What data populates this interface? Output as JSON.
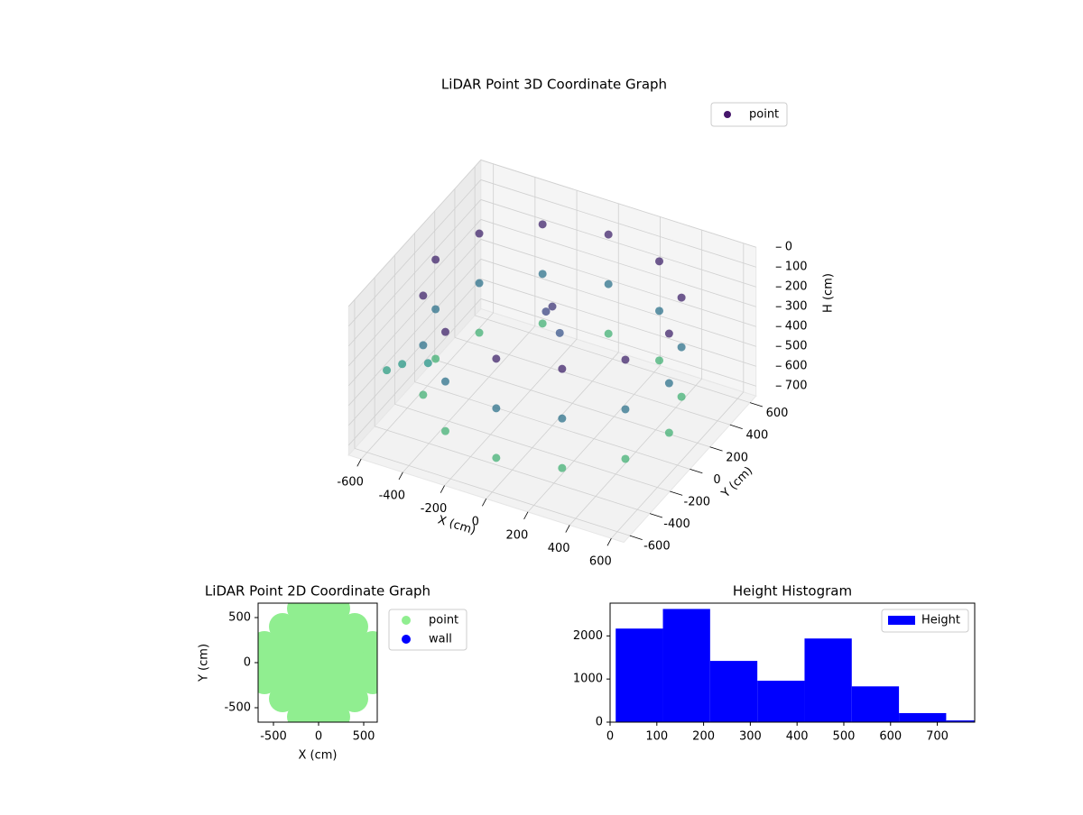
{
  "chart_data": [
    {
      "type": "scatter3d",
      "title": "LiDAR Point 3D Coordinate Graph",
      "xlabel": "X (cm)",
      "ylabel": "Y (cm)",
      "zlabel": "H (cm)",
      "xlim": [
        -660,
        660
      ],
      "ylim": [
        -660,
        660
      ],
      "zlim": [
        0,
        750
      ],
      "z_inverted": true,
      "xticks": [
        -600,
        -400,
        -200,
        0,
        200,
        400,
        600
      ],
      "yticks": [
        -600,
        -400,
        -200,
        0,
        200,
        400,
        600
      ],
      "zticks": [
        0,
        100,
        200,
        300,
        400,
        500,
        600,
        700
      ],
      "colormap": "viridis",
      "grid": true,
      "legend": "upper right",
      "series": [
        {
          "name": "point",
          "color": "#46166b",
          "x": [
            560,
            485,
            280,
            0,
            -280,
            -485,
            -560,
            -485,
            -280,
            0,
            280,
            485,
            560,
            485,
            280,
            0,
            -280,
            -485,
            -560,
            -485,
            -280,
            0,
            280,
            485,
            560,
            485,
            280,
            0,
            -280,
            -485,
            -560,
            -485,
            -280,
            0,
            280,
            485,
            0,
            50,
            -40,
            -650,
            -600,
            -500
          ],
          "y": [
            0,
            280,
            485,
            560,
            485,
            280,
            0,
            -280,
            -485,
            -560,
            -485,
            -280,
            0,
            280,
            485,
            560,
            485,
            280,
            0,
            -280,
            -485,
            -560,
            -485,
            -280,
            0,
            280,
            485,
            560,
            485,
            280,
            0,
            -280,
            -485,
            -560,
            -485,
            -280,
            0,
            -30,
            20,
            -300,
            -250,
            -200
          ],
          "z": [
            100,
            100,
            100,
            100,
            100,
            100,
            100,
            100,
            100,
            100,
            100,
            100,
            350,
            350,
            350,
            350,
            350,
            350,
            350,
            350,
            350,
            350,
            350,
            350,
            600,
            600,
            600,
            600,
            600,
            600,
            600,
            600,
            600,
            600,
            600,
            600,
            150,
            250,
            200,
            520,
            500,
            490
          ]
        }
      ]
    },
    {
      "type": "scatter",
      "title": "LiDAR Point 2D Coordinate Graph",
      "xlabel": "X (cm)",
      "ylabel": "Y (cm)",
      "xlim": [
        -670,
        650
      ],
      "ylim": [
        -660,
        660
      ],
      "xticks": [
        -500,
        0,
        500
      ],
      "yticks": [
        -500,
        0,
        500
      ],
      "legend": "outside right",
      "series": [
        {
          "name": "point",
          "color": "#90ee90",
          "x": [
            -200,
            0,
            200,
            -400,
            -200,
            0,
            200,
            400,
            -600,
            -400,
            -200,
            0,
            200,
            400,
            600,
            -600,
            -400,
            -200,
            0,
            200,
            400,
            600,
            -600,
            -400,
            -200,
            0,
            200,
            400,
            600,
            -400,
            -200,
            0,
            200,
            400,
            -200,
            0,
            200
          ],
          "y": [
            600,
            600,
            600,
            400,
            400,
            400,
            400,
            400,
            200,
            200,
            200,
            200,
            200,
            200,
            200,
            0,
            0,
            0,
            0,
            0,
            0,
            0,
            -200,
            -200,
            -200,
            -200,
            -200,
            -200,
            -200,
            -400,
            -400,
            -400,
            -400,
            -400,
            -600,
            -600,
            -600
          ]
        },
        {
          "name": "wall",
          "color": "#0000ff",
          "x": [],
          "y": []
        }
      ]
    },
    {
      "type": "histogram",
      "title": "Height Histogram",
      "bins": [
        12,
        113,
        214,
        315,
        416,
        517,
        618,
        719,
        820
      ],
      "xlim": [
        0,
        780
      ],
      "ylim": [
        0,
        2760
      ],
      "xticks": [
        0,
        100,
        200,
        300,
        400,
        500,
        600,
        700
      ],
      "yticks": [
        0,
        1000,
        2000
      ],
      "legend": "upper right",
      "series": [
        {
          "name": "Height",
          "color": "#0000ff",
          "values": [
            2170,
            2625,
            1420,
            960,
            1940,
            830,
            210,
            40
          ]
        }
      ]
    }
  ]
}
